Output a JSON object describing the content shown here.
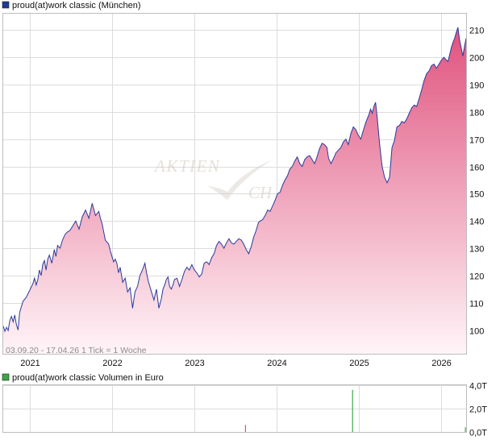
{
  "chart_data": [
    {
      "type": "area",
      "title": "proud(at)work classic (München)",
      "legend_color": "#1f3b96",
      "line_color": "#2a3a9a",
      "fill_top_color": "#e0527e",
      "fill_bottom_color": "#fff5f8",
      "ylim": [
        91,
        216
      ],
      "xlim": [
        2020.68,
        2026.3
      ],
      "yticks": [
        100,
        110,
        120,
        130,
        140,
        150,
        160,
        170,
        180,
        190,
        200,
        210
      ],
      "xticks": [
        {
          "label": "2021",
          "value": 2021.0
        },
        {
          "label": "2022",
          "value": 2022.0
        },
        {
          "label": "2023",
          "value": 2023.0
        },
        {
          "label": "2024",
          "value": 2024.0
        },
        {
          "label": "2025",
          "value": 2025.0
        },
        {
          "label": "2026",
          "value": 2026.0
        }
      ],
      "footnote": "03.09.20 - 17.04.26   1 Tick = 1 Woche",
      "watermark_line1": "AKTIEN",
      "watermark_line2": "CH",
      "grid": true,
      "y_axis_side": "right",
      "series": [
        {
          "x": [
            2020.68,
            2020.7,
            2020.72,
            2020.74,
            2020.76,
            2020.78,
            2020.8,
            2020.82,
            2020.84,
            2020.86,
            2020.88,
            2020.92,
            2020.96,
            2021.0,
            2021.04,
            2021.06,
            2021.08,
            2021.1,
            2021.12,
            2021.14,
            2021.16,
            2021.18,
            2021.2,
            2021.22,
            2021.24,
            2021.27,
            2021.3,
            2021.32,
            2021.34,
            2021.37,
            2021.4,
            2021.43,
            2021.46,
            2021.49,
            2021.52,
            2021.56,
            2021.6,
            2021.64,
            2021.68,
            2021.72,
            2021.76,
            2021.8,
            2021.84,
            2021.86,
            2021.88,
            2021.9,
            2021.92,
            2021.96,
            2021.98,
            2022.0,
            2022.02,
            2022.04,
            2022.06,
            2022.08,
            2022.1,
            2022.13,
            2022.16,
            2022.19,
            2022.22,
            2022.25,
            2022.28,
            2022.31,
            2022.34,
            2022.37,
            2022.4,
            2022.42,
            2022.44,
            2022.46,
            2022.48,
            2022.51,
            2022.54,
            2022.57,
            2022.6,
            2022.62,
            2022.64,
            2022.66,
            2022.68,
            2022.7,
            2022.72,
            2022.74,
            2022.76,
            2022.79,
            2022.82,
            2022.85,
            2022.88,
            2022.91,
            2022.94,
            2022.97,
            2023.0,
            2023.03,
            2023.06,
            2023.09,
            2023.12,
            2023.15,
            2023.18,
            2023.21,
            2023.24,
            2023.27,
            2023.3,
            2023.33,
            2023.36,
            2023.39,
            2023.42,
            2023.45,
            2023.48,
            2023.51,
            2023.54,
            2023.57,
            2023.6,
            2023.63,
            2023.66,
            2023.69,
            2023.72,
            2023.75,
            2023.78,
            2023.8,
            2023.83,
            2023.86,
            2023.89,
            2023.92,
            2023.95,
            2023.98,
            2024.01,
            2024.04,
            2024.07,
            2024.1,
            2024.13,
            2024.16,
            2024.19,
            2024.22,
            2024.25,
            2024.28,
            2024.31,
            2024.34,
            2024.37,
            2024.4,
            2024.43,
            2024.46,
            2024.49,
            2024.52,
            2024.55,
            2024.58,
            2024.61,
            2024.63,
            2024.66,
            2024.69,
            2024.72,
            2024.75,
            2024.78,
            2024.81,
            2024.84,
            2024.87,
            2024.9,
            2024.93,
            2024.96,
            2024.99,
            2025.02,
            2025.05,
            2025.08,
            2025.1,
            2025.12,
            2025.14,
            2025.16,
            2025.18,
            2025.2,
            2025.22,
            2025.25,
            2025.28,
            2025.31,
            2025.34,
            2025.37,
            2025.4,
            2025.43,
            2025.46,
            2025.49,
            2025.52,
            2025.55,
            2025.58,
            2025.61,
            2025.64,
            2025.67,
            2025.7,
            2025.73,
            2025.76,
            2025.79,
            2025.82,
            2025.85,
            2025.88,
            2025.91,
            2025.94,
            2025.97,
            2026.0,
            2026.03,
            2026.06,
            2026.08,
            2026.1,
            2026.12,
            2026.14,
            2026.16,
            2026.18,
            2026.2,
            2026.22,
            2026.24,
            2026.26,
            2026.28,
            2026.3
          ],
          "values": [
            101.5,
            99.5,
            101.0,
            99.8,
            103.5,
            105.0,
            103.0,
            105.5,
            102.0,
            100.0,
            106.5,
            110.5,
            112.0,
            114.5,
            117.0,
            119.0,
            116.5,
            118.5,
            122.0,
            120.0,
            124.0,
            125.5,
            122.0,
            126.0,
            127.5,
            124.5,
            129.5,
            127.0,
            131.0,
            130.0,
            133.0,
            135.0,
            136.0,
            136.5,
            138.0,
            140.0,
            137.0,
            141.5,
            144.0,
            141.0,
            146.5,
            142.0,
            143.5,
            141.0,
            139.0,
            136.0,
            133.0,
            131.5,
            129.0,
            127.0,
            125.0,
            126.0,
            124.5,
            121.0,
            123.0,
            117.5,
            119.0,
            114.0,
            115.5,
            108.0,
            114.0,
            116.0,
            120.0,
            122.0,
            124.5,
            121.0,
            118.0,
            116.0,
            114.0,
            111.0,
            115.0,
            108.0,
            111.5,
            115.0,
            116.5,
            118.5,
            119.5,
            116.0,
            115.0,
            116.5,
            118.5,
            119.0,
            116.0,
            118.5,
            121.5,
            123.0,
            122.0,
            124.0,
            122.0,
            121.0,
            119.5,
            120.5,
            124.5,
            125.0,
            124.0,
            126.5,
            128.0,
            131.0,
            132.5,
            131.5,
            130.0,
            132.0,
            133.5,
            132.0,
            131.5,
            132.5,
            133.5,
            133.0,
            131.5,
            129.5,
            128.0,
            130.5,
            134.0,
            136.5,
            139.5,
            140.0,
            140.5,
            142.0,
            144.0,
            143.5,
            145.5,
            147.5,
            150.0,
            150.5,
            153.0,
            155.0,
            156.5,
            159.0,
            160.0,
            162.0,
            163.5,
            161.0,
            160.0,
            162.5,
            163.5,
            164.0,
            162.5,
            161.0,
            163.5,
            166.5,
            168.5,
            168.0,
            167.0,
            163.0,
            161.0,
            163.0,
            165.0,
            166.0,
            167.0,
            169.0,
            170.0,
            168.0,
            172.0,
            174.5,
            173.5,
            171.5,
            170.0,
            173.0,
            176.0,
            177.5,
            179.0,
            181.0,
            179.5,
            182.0,
            183.5,
            178.0,
            168.0,
            160.0,
            156.0,
            154.0,
            156.0,
            167.0,
            169.5,
            174.5,
            175.0,
            176.5,
            176.0,
            177.5,
            179.5,
            181.5,
            182.5,
            182.0,
            185.0,
            188.0,
            191.5,
            194.0,
            195.0,
            197.0,
            197.5,
            196.0,
            197.5,
            199.0,
            200.0,
            199.0,
            198.5,
            201.0,
            203.5,
            205.5,
            207.0,
            209.0,
            211.0,
            206.5,
            203.5,
            200.5,
            204.0,
            207.0
          ]
        }
      ]
    },
    {
      "type": "bar",
      "title": "proud(at)work classic Volumen in Euro",
      "legend_color": "#3aa845",
      "ylim": [
        0,
        4.0
      ],
      "yticks": [
        {
          "label": "0,0T",
          "value": 0.0
        },
        {
          "label": "2,0T",
          "value": 2.0
        },
        {
          "label": "4,0T",
          "value": 4.0
        }
      ],
      "xlim": [
        2020.68,
        2026.3
      ],
      "grid": true,
      "series": [
        {
          "points": [
            {
              "x": 2023.62,
              "value": 0.6,
              "color": "#d45a6a"
            },
            {
              "x": 2024.92,
              "value": 3.6,
              "color": "#3aa845"
            },
            {
              "x": 2026.29,
              "value": 0.4,
              "color": "#3aa845"
            }
          ]
        }
      ]
    }
  ]
}
